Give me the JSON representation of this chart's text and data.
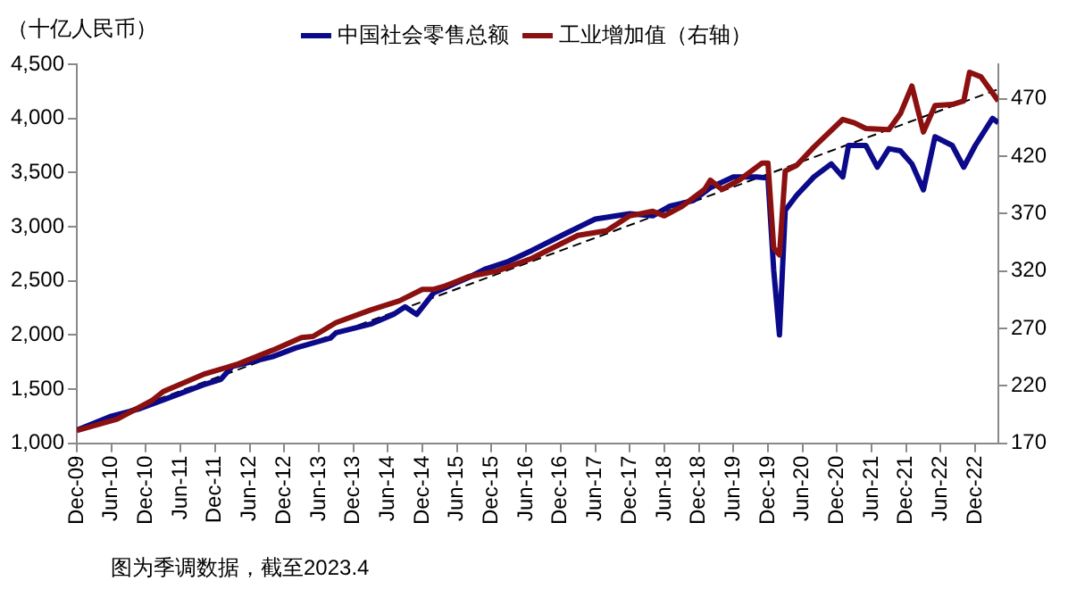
{
  "chart_data": {
    "type": "line",
    "ylabel": "（十亿人民币）",
    "legend": "top",
    "grid": false,
    "line_style": "solid",
    "marker": "none",
    "annotations": [
      "图为季调数据，截至2023.4"
    ],
    "xlim": [
      "2009-12",
      "2023-04"
    ],
    "xticks": [
      {
        "value": "2009-12",
        "label": "Dec-09"
      },
      {
        "value": "2010-06",
        "label": "Jun-10"
      },
      {
        "value": "2010-12",
        "label": "Dec-10"
      },
      {
        "value": "2011-06",
        "label": "Jun-11"
      },
      {
        "value": "2011-12",
        "label": "Dec-11"
      },
      {
        "value": "2012-06",
        "label": "Jun-12"
      },
      {
        "value": "2012-12",
        "label": "Dec-12"
      },
      {
        "value": "2013-06",
        "label": "Jun-13"
      },
      {
        "value": "2013-12",
        "label": "Dec-13"
      },
      {
        "value": "2014-06",
        "label": "Jun-14"
      },
      {
        "value": "2014-12",
        "label": "Dec-14"
      },
      {
        "value": "2015-06",
        "label": "Jun-15"
      },
      {
        "value": "2015-12",
        "label": "Dec-15"
      },
      {
        "value": "2016-06",
        "label": "Jun-16"
      },
      {
        "value": "2016-12",
        "label": "Dec-16"
      },
      {
        "value": "2017-06",
        "label": "Jun-17"
      },
      {
        "value": "2017-12",
        "label": "Dec-17"
      },
      {
        "value": "2018-06",
        "label": "Jun-18"
      },
      {
        "value": "2018-12",
        "label": "Dec-18"
      },
      {
        "value": "2019-06",
        "label": "Jun-19"
      },
      {
        "value": "2019-12",
        "label": "Dec-19"
      },
      {
        "value": "2020-06",
        "label": "Jun-20"
      },
      {
        "value": "2020-12",
        "label": "Dec-20"
      },
      {
        "value": "2021-06",
        "label": "Jun-21"
      },
      {
        "value": "2021-12",
        "label": "Dec-21"
      },
      {
        "value": "2022-06",
        "label": "Jun-22"
      },
      {
        "value": "2022-12",
        "label": "Dec-22"
      }
    ],
    "ylim": [
      1000,
      4500
    ],
    "yticks": [
      {
        "value": 1000,
        "label": "1,000"
      },
      {
        "value": 1500,
        "label": "1,500"
      },
      {
        "value": 2000,
        "label": "2,000"
      },
      {
        "value": 2500,
        "label": "2,500"
      },
      {
        "value": 3000,
        "label": "3,000"
      },
      {
        "value": 3500,
        "label": "3,500"
      },
      {
        "value": 4000,
        "label": "4,000"
      },
      {
        "value": 4500,
        "label": "4,500"
      }
    ],
    "y2lim": [
      170,
      500
    ],
    "y2ticks": [
      170,
      220,
      270,
      320,
      370,
      420,
      470
    ],
    "series": [
      {
        "name": "中国社会零售总额",
        "color": "#0a0a8a",
        "x": [
          "2009-12",
          "2010-06",
          "2010-11",
          "2011-03",
          "2011-10",
          "2012-01",
          "2012-03",
          "2012-07",
          "2012-10",
          "2013-02",
          "2013-08",
          "2013-09",
          "2014-03",
          "2014-07",
          "2014-09",
          "2014-11",
          "2015-02",
          "2015-08",
          "2015-11",
          "2016-03",
          "2016-07",
          "2017-01",
          "2017-06",
          "2017-12",
          "2018-04",
          "2018-07",
          "2018-11",
          "2019-02",
          "2019-06",
          "2019-10",
          "2019-12",
          "2020-01",
          "2020-02",
          "2020-03",
          "2020-05",
          "2020-08",
          "2020-11",
          "2021-01",
          "2021-02",
          "2021-05",
          "2021-07",
          "2021-09",
          "2021-11",
          "2022-01",
          "2022-03",
          "2022-05",
          "2022-08",
          "2022-10",
          "2022-12",
          "2023-03",
          "2023-04"
        ],
        "values": [
          1120,
          1250,
          1320,
          1400,
          1540,
          1590,
          1710,
          1760,
          1800,
          1880,
          1970,
          2020,
          2100,
          2190,
          2260,
          2190,
          2390,
          2530,
          2610,
          2680,
          2780,
          2940,
          3070,
          3120,
          3100,
          3190,
          3240,
          3360,
          3460,
          3460,
          3450,
          2600,
          2000,
          3150,
          3290,
          3460,
          3580,
          3460,
          3750,
          3750,
          3550,
          3720,
          3700,
          3580,
          3340,
          3830,
          3750,
          3550,
          3750,
          4000,
          3960
        ]
      },
      {
        "name": "工业增加值（右轴）",
        "color": "#8b1010",
        "axis": "y2",
        "x": [
          "2009-12",
          "2010-07",
          "2011-01",
          "2011-03",
          "2011-10",
          "2012-04",
          "2012-10",
          "2013-03",
          "2013-05",
          "2013-09",
          "2014-03",
          "2014-08",
          "2014-12",
          "2015-02",
          "2015-04",
          "2015-08",
          "2016-01",
          "2016-07",
          "2016-09",
          "2017-03",
          "2017-08",
          "2017-12",
          "2018-04",
          "2018-06",
          "2018-09",
          "2019-01",
          "2019-02",
          "2019-04",
          "2019-07",
          "2019-11",
          "2019-12",
          "2020-01",
          "2020-02",
          "2020-03",
          "2020-05",
          "2020-08",
          "2021-01",
          "2021-03",
          "2021-05",
          "2021-09",
          "2021-11",
          "2022-01",
          "2022-03",
          "2022-05",
          "2022-08",
          "2022-10",
          "2022-11",
          "2023-01",
          "2023-04"
        ],
        "values": [
          181,
          191,
          207,
          215,
          230,
          239,
          251,
          262,
          263,
          275,
          286,
          294,
          304,
          304,
          307,
          315,
          320,
          331,
          336,
          351,
          355,
          368,
          372,
          368,
          376,
          391,
          399,
          391,
          399,
          414,
          414,
          340,
          334,
          407,
          412,
          428,
          452,
          449,
          444,
          443,
          457,
          481,
          441,
          464,
          465,
          468,
          493,
          489,
          468
        ]
      },
      {
        "type": "line",
        "line_style": "dashed",
        "color": "#000000",
        "x": [
          "2009-12",
          "2023-04"
        ],
        "values": [
          1130,
          4270
        ]
      }
    ]
  }
}
